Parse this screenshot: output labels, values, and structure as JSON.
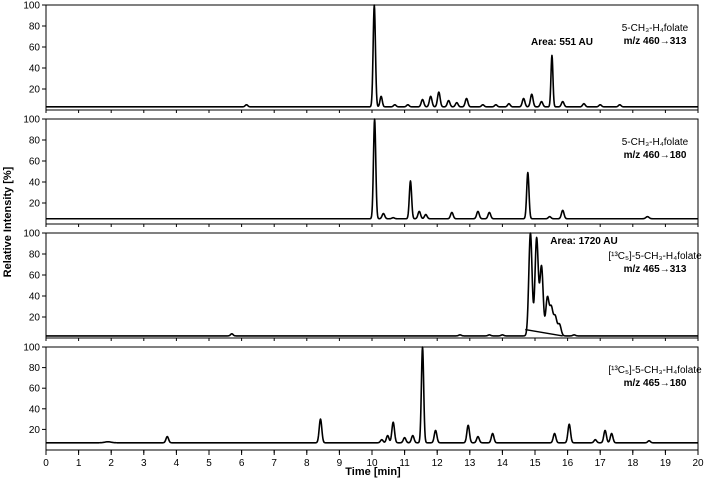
{
  "chart_data": {
    "type": "line",
    "xlabel": "Time [min]",
    "ylabel": "Relative Intensity [%]",
    "xlim": [
      0,
      20
    ],
    "x_ticks": [
      "0",
      "1",
      "2",
      "3",
      "4",
      "5",
      "6",
      "7",
      "8",
      "9",
      "10",
      "11",
      "12",
      "13",
      "14",
      "15",
      "16",
      "17",
      "18",
      "19",
      "20"
    ],
    "y_ticks": [
      "20",
      "40",
      "60",
      "80",
      "100"
    ],
    "colors": {
      "trace": "#000000",
      "background": "#ffffff"
    },
    "panels": [
      {
        "label_line1": "5-CH₃-H₄folate",
        "label_line2": "m/z 460→313",
        "area_text": "Area: 551 AU",
        "ylim": [
          0,
          100
        ],
        "baseline": 3,
        "peaks": [
          {
            "x": 6.15,
            "y": 5,
            "w": 0.04
          },
          {
            "x": 10.07,
            "y": 100,
            "w": 0.035
          },
          {
            "x": 10.28,
            "y": 13,
            "w": 0.035
          },
          {
            "x": 10.7,
            "y": 5,
            "w": 0.04
          },
          {
            "x": 11.1,
            "y": 5,
            "w": 0.04
          },
          {
            "x": 11.55,
            "y": 10,
            "w": 0.04
          },
          {
            "x": 11.8,
            "y": 13,
            "w": 0.04
          },
          {
            "x": 12.05,
            "y": 17,
            "w": 0.04
          },
          {
            "x": 12.35,
            "y": 9,
            "w": 0.04
          },
          {
            "x": 12.6,
            "y": 7,
            "w": 0.04
          },
          {
            "x": 12.9,
            "y": 11,
            "w": 0.04
          },
          {
            "x": 13.4,
            "y": 5,
            "w": 0.04
          },
          {
            "x": 13.8,
            "y": 5,
            "w": 0.04
          },
          {
            "x": 14.2,
            "y": 6,
            "w": 0.04
          },
          {
            "x": 14.65,
            "y": 11,
            "w": 0.04
          },
          {
            "x": 14.9,
            "y": 15,
            "w": 0.04
          },
          {
            "x": 15.2,
            "y": 8,
            "w": 0.04
          },
          {
            "x": 15.52,
            "y": 52,
            "w": 0.03
          },
          {
            "x": 15.85,
            "y": 8,
            "w": 0.04
          },
          {
            "x": 16.5,
            "y": 6,
            "w": 0.04
          },
          {
            "x": 17.0,
            "y": 5,
            "w": 0.04
          },
          {
            "x": 17.6,
            "y": 5,
            "w": 0.04
          }
        ]
      },
      {
        "label_line1": "5-CH₃-H₄folate",
        "label_line2": "m/z 460→180",
        "area_text": "",
        "ylim": [
          0,
          100
        ],
        "baseline": 5,
        "peaks": [
          {
            "x": 10.08,
            "y": 100,
            "w": 0.035
          },
          {
            "x": 10.35,
            "y": 10,
            "w": 0.04
          },
          {
            "x": 10.65,
            "y": 6,
            "w": 0.04
          },
          {
            "x": 11.18,
            "y": 41,
            "w": 0.035
          },
          {
            "x": 11.45,
            "y": 12,
            "w": 0.04
          },
          {
            "x": 11.65,
            "y": 9,
            "w": 0.04
          },
          {
            "x": 12.45,
            "y": 11,
            "w": 0.04
          },
          {
            "x": 13.25,
            "y": 12,
            "w": 0.04
          },
          {
            "x": 13.6,
            "y": 11,
            "w": 0.04
          },
          {
            "x": 14.78,
            "y": 49,
            "w": 0.035
          },
          {
            "x": 15.45,
            "y": 7,
            "w": 0.04
          },
          {
            "x": 15.85,
            "y": 13,
            "w": 0.04
          },
          {
            "x": 18.45,
            "y": 7,
            "w": 0.05
          }
        ]
      },
      {
        "label_line1": "[¹³C₅]-5-CH₃-H₄folate",
        "label_line2": "m/z 465→313",
        "area_text": "Area: 1720 AU",
        "ylim": [
          0,
          100
        ],
        "baseline": 2,
        "peaks": [
          {
            "x": 5.7,
            "y": 4,
            "w": 0.04
          },
          {
            "x": 12.7,
            "y": 3,
            "w": 0.04
          },
          {
            "x": 13.6,
            "y": 3,
            "w": 0.04
          },
          {
            "x": 14.0,
            "y": 3,
            "w": 0.04
          },
          {
            "x": 14.86,
            "y": 100,
            "w": 0.05
          },
          {
            "x": 15.05,
            "y": 95,
            "w": 0.05
          },
          {
            "x": 15.2,
            "y": 68,
            "w": 0.05
          },
          {
            "x": 15.38,
            "y": 38,
            "w": 0.05
          },
          {
            "x": 15.5,
            "y": 28,
            "w": 0.05
          },
          {
            "x": 15.62,
            "y": 20,
            "w": 0.05
          },
          {
            "x": 15.75,
            "y": 13,
            "w": 0.05
          },
          {
            "x": 16.2,
            "y": 3,
            "w": 0.04
          }
        ],
        "integration_line": {
          "x": [
            14.7,
            15.85
          ],
          "y": [
            8,
            2
          ]
        }
      },
      {
        "label_line1": "[¹³C₅]-5-CH₃-H₄folate",
        "label_line2": "m/z 465→180",
        "area_text": "",
        "ylim": [
          0,
          100
        ],
        "baseline": 7,
        "peaks": [
          {
            "x": 1.9,
            "y": 8,
            "w": 0.1
          },
          {
            "x": 3.72,
            "y": 13,
            "w": 0.04
          },
          {
            "x": 8.42,
            "y": 30,
            "w": 0.04
          },
          {
            "x": 10.3,
            "y": 10,
            "w": 0.04
          },
          {
            "x": 10.48,
            "y": 14,
            "w": 0.04
          },
          {
            "x": 10.65,
            "y": 27,
            "w": 0.04
          },
          {
            "x": 11.0,
            "y": 12,
            "w": 0.04
          },
          {
            "x": 11.25,
            "y": 14,
            "w": 0.04
          },
          {
            "x": 11.55,
            "y": 100,
            "w": 0.035
          },
          {
            "x": 11.95,
            "y": 19,
            "w": 0.04
          },
          {
            "x": 12.95,
            "y": 24,
            "w": 0.04
          },
          {
            "x": 13.25,
            "y": 13,
            "w": 0.04
          },
          {
            "x": 13.7,
            "y": 16,
            "w": 0.04
          },
          {
            "x": 15.6,
            "y": 16,
            "w": 0.04
          },
          {
            "x": 16.05,
            "y": 25,
            "w": 0.04
          },
          {
            "x": 16.85,
            "y": 10,
            "w": 0.04
          },
          {
            "x": 17.15,
            "y": 19,
            "w": 0.04
          },
          {
            "x": 17.35,
            "y": 16,
            "w": 0.04
          },
          {
            "x": 18.5,
            "y": 9,
            "w": 0.04
          }
        ]
      }
    ]
  }
}
